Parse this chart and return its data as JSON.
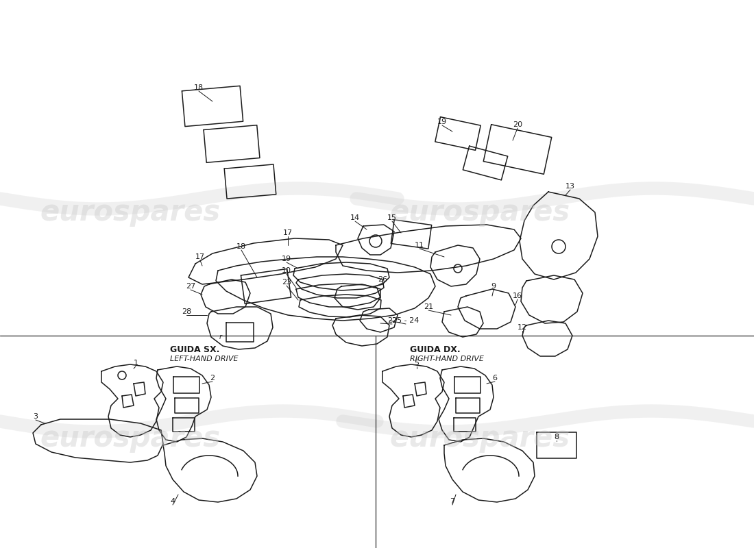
{
  "bg_color": "#ffffff",
  "line_color": "#1a1a1a",
  "label_color": "#1a1a1a",
  "watermark_color_top": "#cccccc",
  "guida_sx_label": "GUIDA SX.",
  "guida_sx_sublabel": "LEFT-HAND DRIVE",
  "guida_dx_label": "GUIDA DX.",
  "guida_dx_sublabel": "RIGHT-HAND DRIVE",
  "lw": 1.1
}
